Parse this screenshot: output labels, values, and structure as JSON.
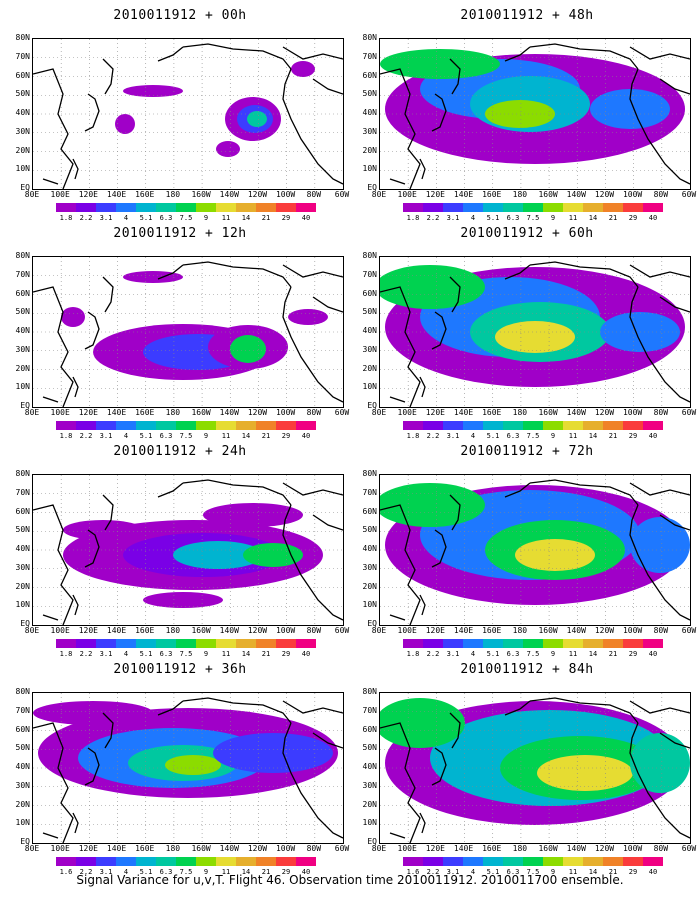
{
  "colorbar": {
    "labels": [
      "1.8",
      "2.2",
      "3.1",
      "4",
      "5.1",
      "6.3",
      "7.5",
      "9",
      "11",
      "14",
      "21",
      "29",
      "40"
    ],
    "labels_last": [
      "1.6",
      "2.2",
      "3.1",
      "4",
      "5.1",
      "6.3",
      "7.5",
      "9",
      "11",
      "14",
      "21",
      "29",
      "40"
    ],
    "colors": [
      "#a000c8",
      "#7a00e6",
      "#3c3cff",
      "#1e78ff",
      "#00b4d0",
      "#00c8a0",
      "#00d250",
      "#8cdc00",
      "#e6dc32",
      "#e6af2d",
      "#f08228",
      "#fa3c3c",
      "#f00082"
    ]
  },
  "lat_labels": [
    "80N",
    "70N",
    "60N",
    "50N",
    "40N",
    "30N",
    "20N",
    "10N",
    "EQ"
  ],
  "lon_labels": [
    "80E",
    "100E",
    "120E",
    "140E",
    "160E",
    "180",
    "160W",
    "140W",
    "120W",
    "100W",
    "80W",
    "60W"
  ],
  "panels": [
    {
      "id": "p00",
      "title": "2010011912 + 00h",
      "colorbar_key": "labels"
    },
    {
      "id": "p12",
      "title": "2010011912 + 12h",
      "colorbar_key": "labels"
    },
    {
      "id": "p24",
      "title": "2010011912 + 24h",
      "colorbar_key": "labels"
    },
    {
      "id": "p36",
      "title": "2010011912 + 36h",
      "colorbar_key": "labels_last"
    },
    {
      "id": "p48",
      "title": "2010011912 + 48h",
      "colorbar_key": "labels"
    },
    {
      "id": "p60",
      "title": "2010011912 + 60h",
      "colorbar_key": "labels"
    },
    {
      "id": "p72",
      "title": "2010011912 + 72h",
      "colorbar_key": "labels"
    },
    {
      "id": "p84",
      "title": "2010011912 + 84h",
      "colorbar_key": "labels_last"
    }
  ],
  "caption": "Signal Variance for u,v,T. Flight 46. Observation time 2010011912. 2010011700 ensemble."
}
